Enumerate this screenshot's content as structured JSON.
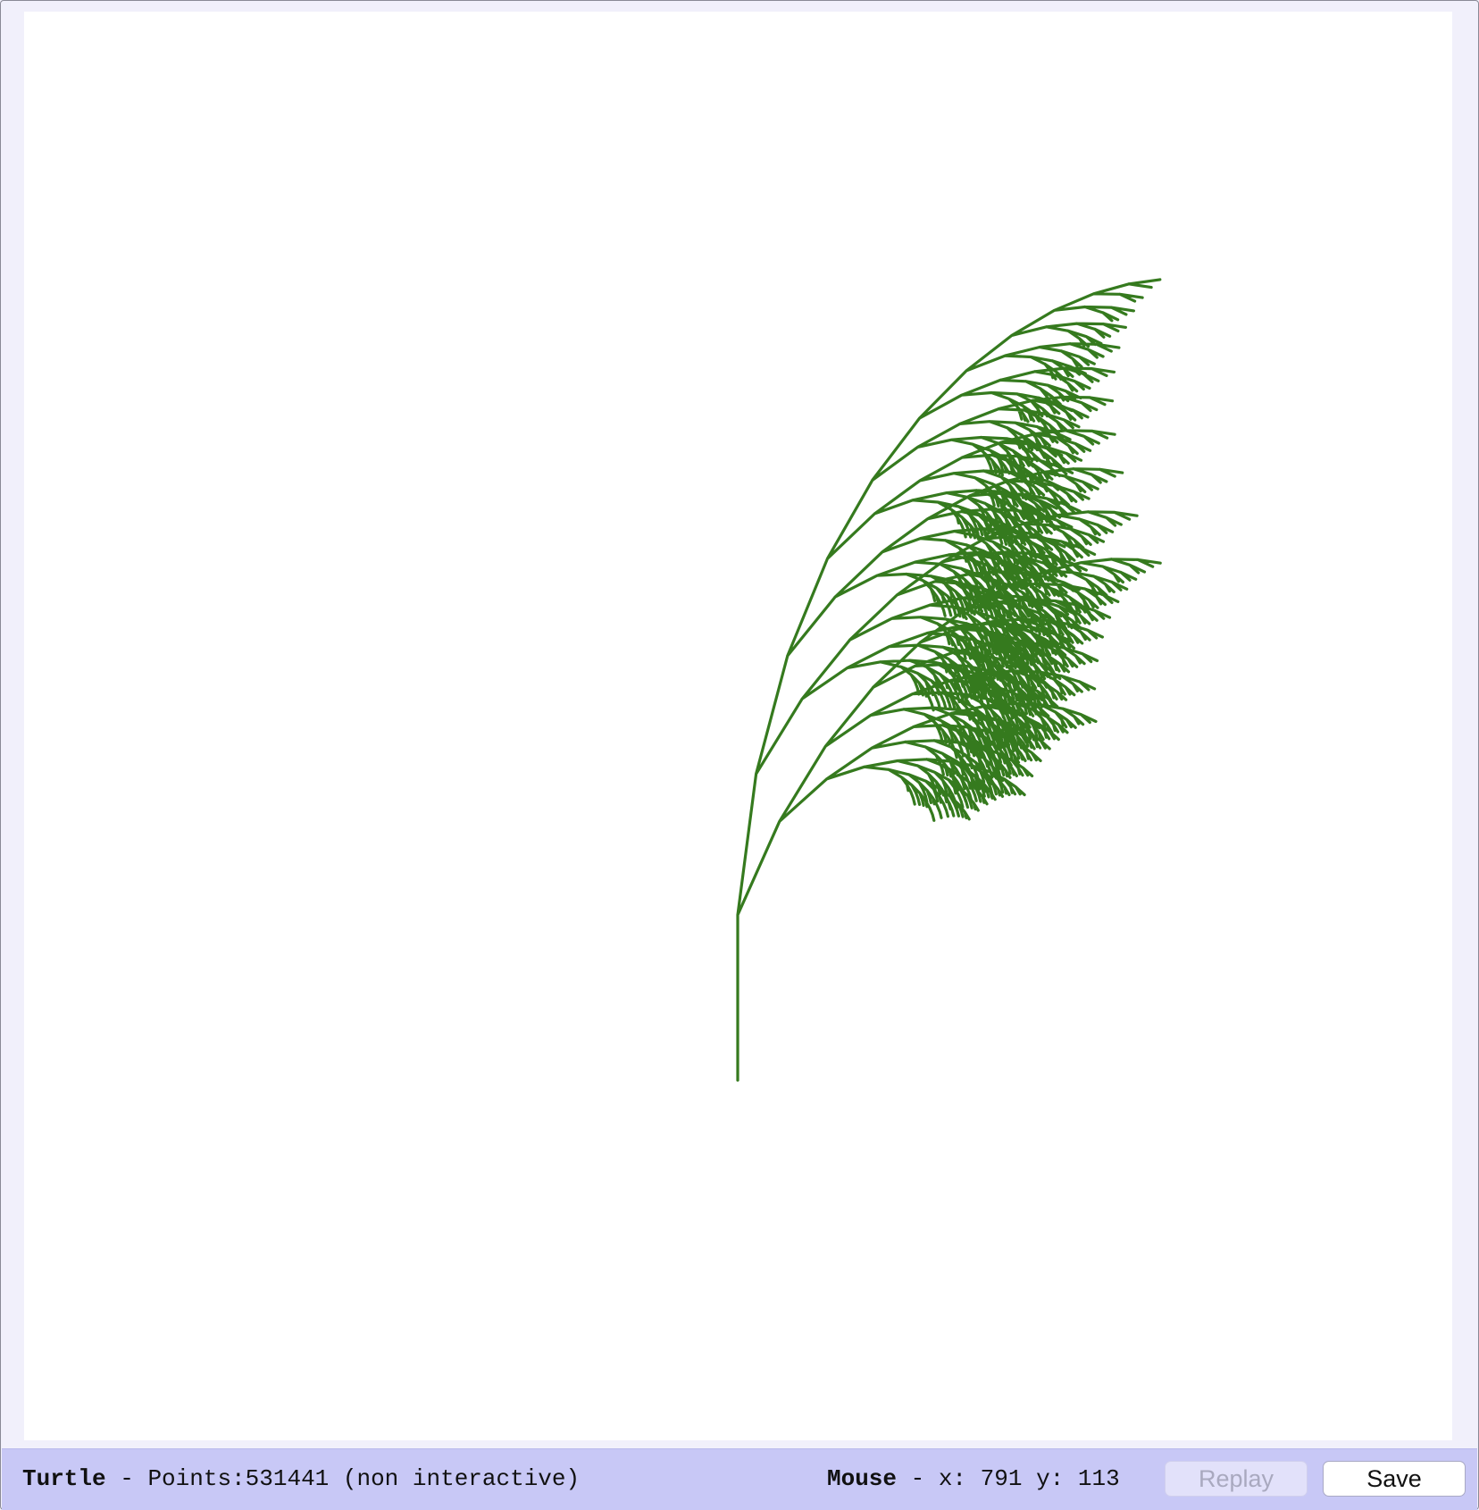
{
  "canvas": {
    "stroke_color": "#357a1e",
    "background": "#ffffff"
  },
  "status": {
    "app_name": "Turtle",
    "separator": " - ",
    "points_text": "Points:531441 (non interactive)",
    "mouse_label": "Mouse",
    "mouse_x_label": "x:",
    "mouse_x": "791",
    "mouse_y_label": "y:",
    "mouse_y": "113"
  },
  "buttons": {
    "replay_label": "Replay",
    "save_label": "Save"
  },
  "colors": {
    "frame_bg": "#f1f0fb",
    "statusbar_bg": "#c8c8f6",
    "replay_disabled": "#a9a9bf"
  },
  "icons": []
}
